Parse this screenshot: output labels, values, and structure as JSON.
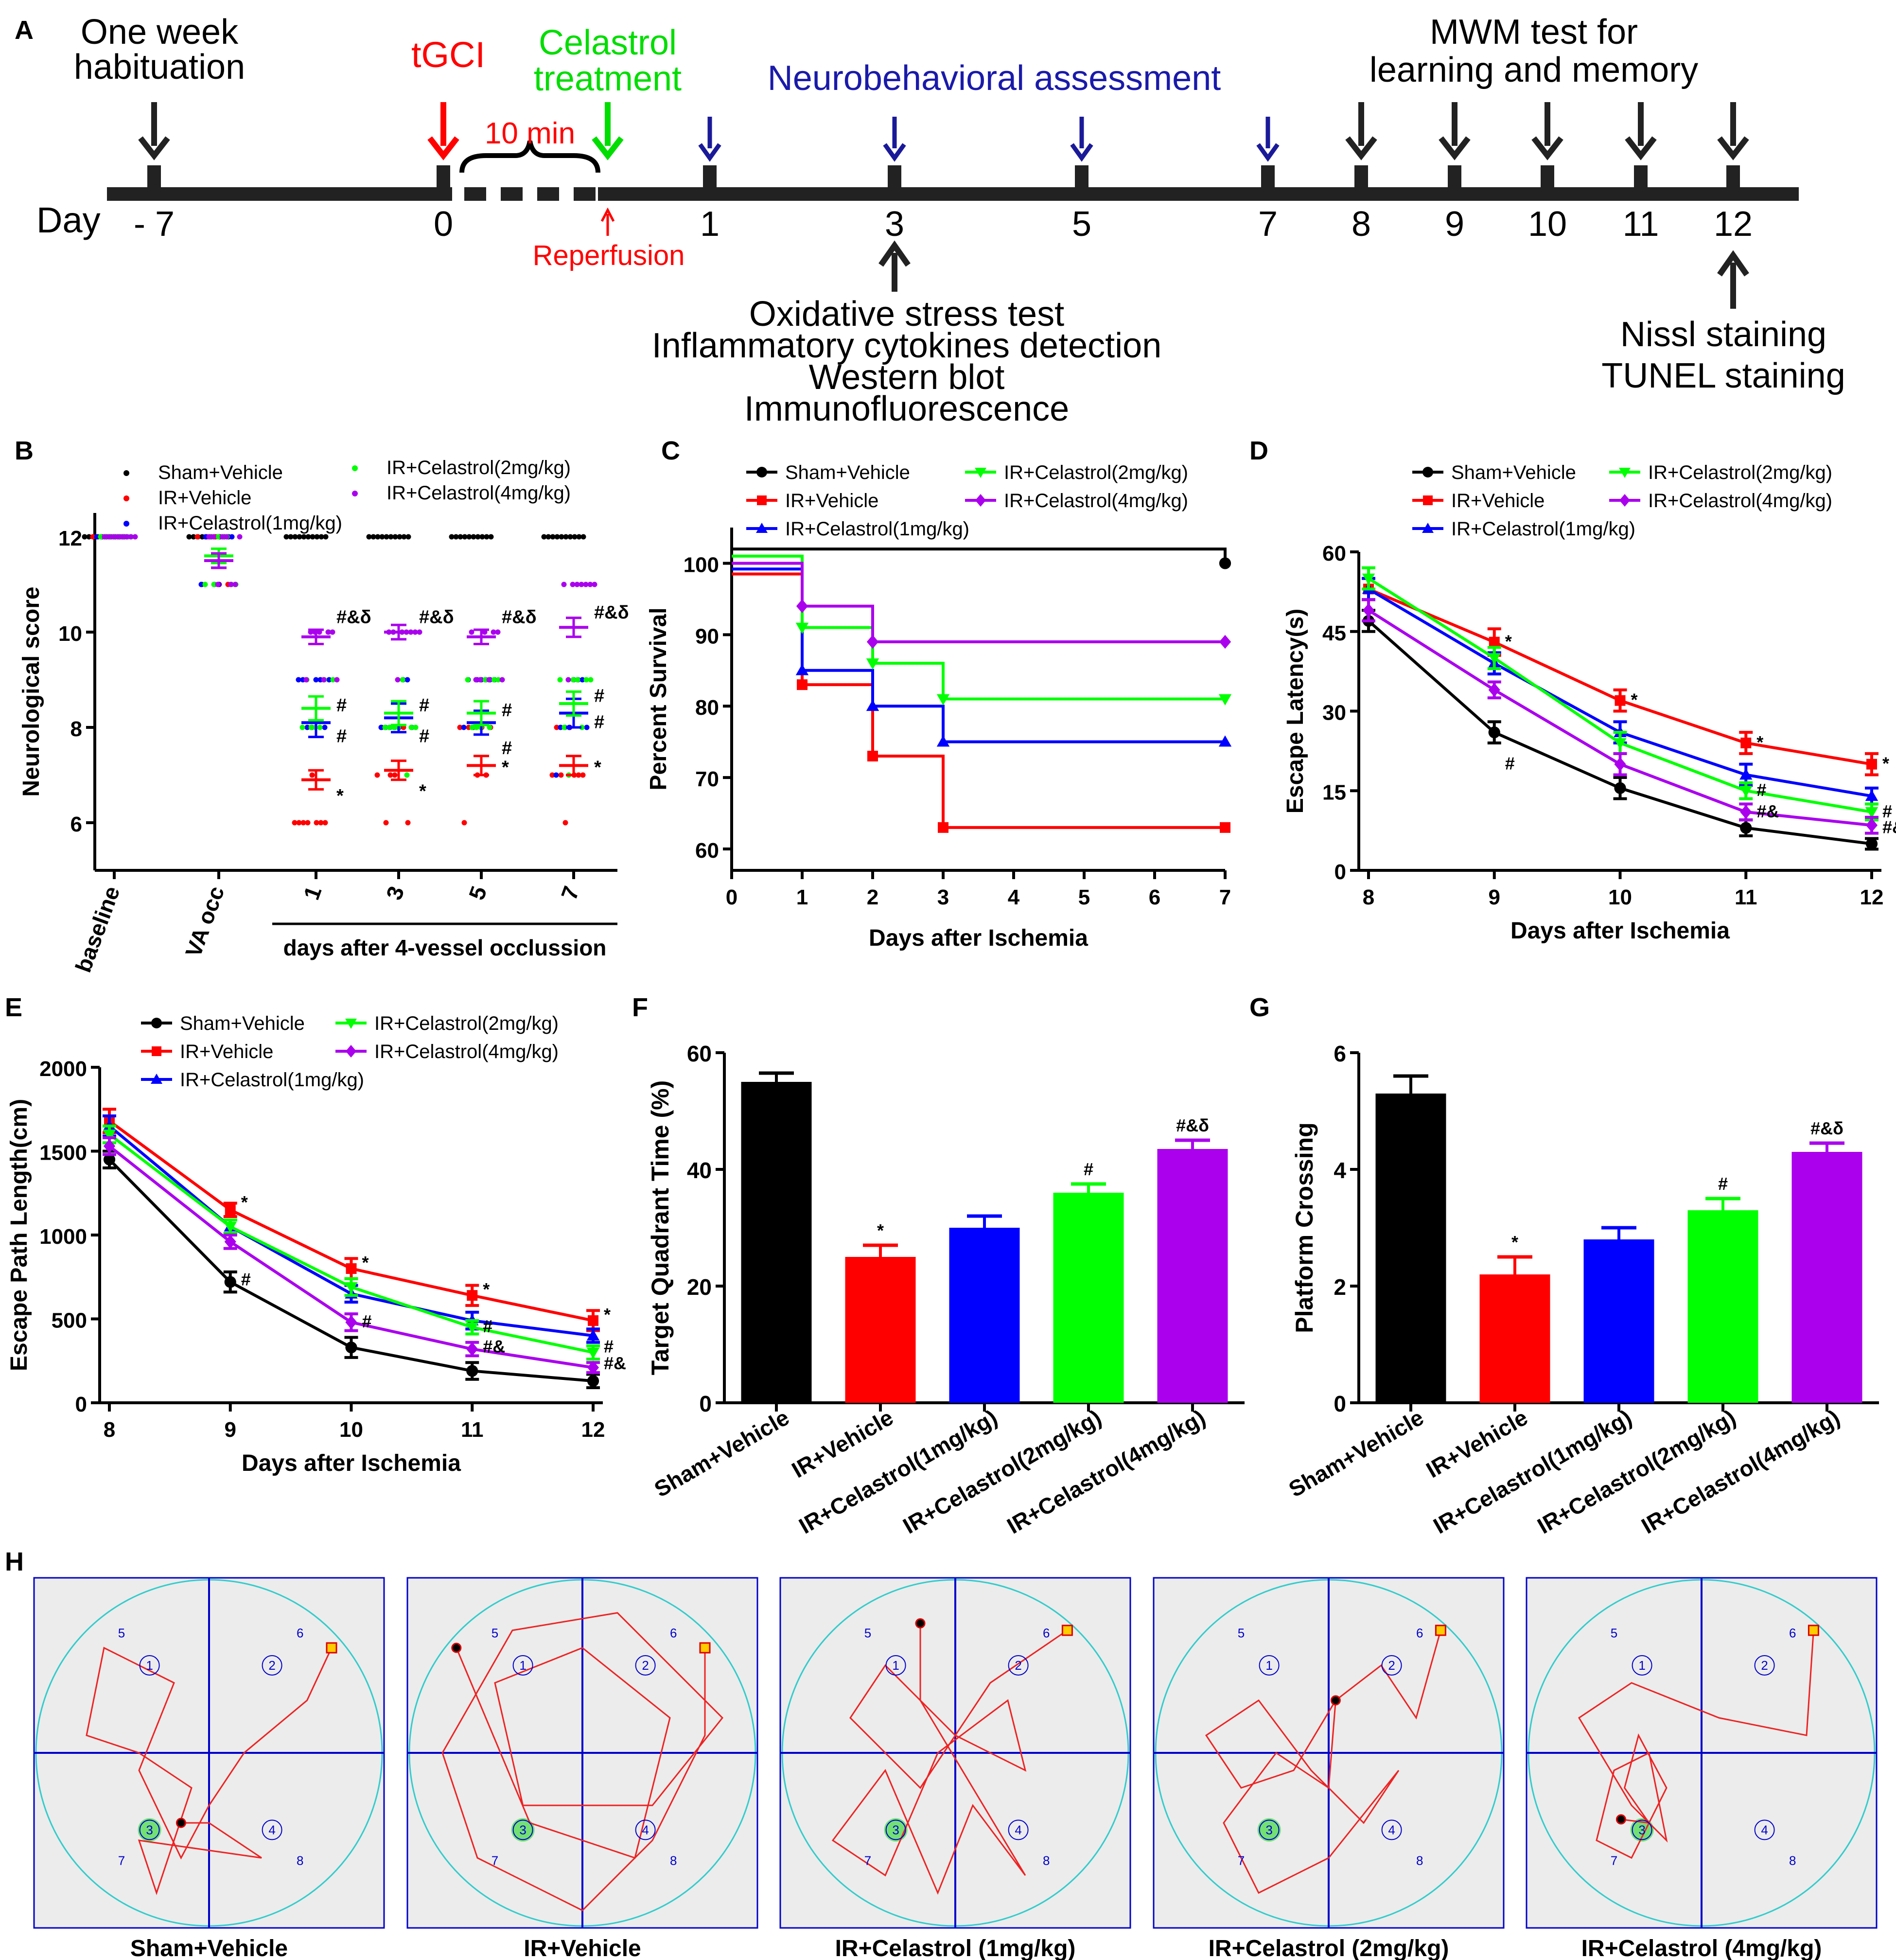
{
  "colors": {
    "sham": "#000000",
    "ir": "#ff0000",
    "c1": "#0000ff",
    "c2": "#00ff00",
    "c4": "#aa00ee",
    "blueArrow": "#1a1a99",
    "pathRed": "#ee2222",
    "poolCyan": "#33cccc",
    "quadBlue": "#0000cc",
    "areaGrey": "#ececec",
    "platformGreen": "#55dd55"
  },
  "series_names": [
    "Sham+Vehicle",
    "IR+Vehicle",
    "IR+Celastrol(1mg/kg)",
    "IR+Celastrol(2mg/kg)",
    "IR+Celastrol(4mg/kg)"
  ],
  "panelA": {
    "letter": "A",
    "day_label": "Day",
    "events": [
      {
        "day": "- 7",
        "lines": [
          "One week",
          "habituation"
        ],
        "color": "sham"
      },
      {
        "day": "0",
        "lines": [
          "tGCI"
        ],
        "color": "ir"
      },
      {
        "day": "",
        "lines": [
          "Celastrol",
          "treatment"
        ],
        "color": "c2"
      },
      {
        "day": "1",
        "lines": [],
        "color": "blueArrow"
      },
      {
        "day": "3",
        "lines": [],
        "color": "blueArrow"
      },
      {
        "day": "5",
        "lines": [],
        "color": "blueArrow"
      },
      {
        "day": "7",
        "lines": [],
        "color": "blueArrow"
      },
      {
        "day": "8",
        "lines": [],
        "color": "sham"
      },
      {
        "day": "9",
        "lines": [],
        "color": "sham"
      },
      {
        "day": "10",
        "lines": [],
        "color": "sham"
      },
      {
        "day": "11",
        "lines": [],
        "color": "sham"
      },
      {
        "day": "12",
        "lines": [],
        "color": "sham"
      }
    ],
    "ten_min": "10 min",
    "reperfusion": "Reperfusion",
    "neuro": "Neurobehavioral assessment",
    "mwm": [
      "MWM test for",
      "learning and memory"
    ],
    "day3_tests": [
      "Oxidative stress test",
      "Inflammatory cytokines detection",
      "Western blot",
      "Immunofluorescence"
    ],
    "day12_tests": [
      "Nissl staining",
      "TUNEL staining"
    ]
  },
  "chart_data": [
    {
      "panel": "B",
      "type": "scatter",
      "title": "",
      "ylabel": "Neurological score",
      "xlabel": "days after 4-vessel occlussion",
      "categories": [
        "baseline",
        "VA occ",
        "1",
        "3",
        "5",
        "7"
      ],
      "ylim": [
        5,
        12.5
      ],
      "yticks": [
        6,
        8,
        10,
        12
      ],
      "means": {
        "Sham+Vehicle": [
          12,
          12,
          12,
          12,
          12,
          12
        ],
        "IR+Vehicle": [
          12,
          11.5,
          6.9,
          7.1,
          7.2,
          7.2
        ],
        "IR+Celastrol(1mg/kg)": [
          12,
          11.5,
          8.1,
          8.2,
          8.1,
          8.3
        ],
        "IR+Celastrol(2mg/kg)": [
          12,
          11.6,
          8.4,
          8.3,
          8.3,
          8.5
        ],
        "IR+Celastrol(4mg/kg)": [
          12,
          11.5,
          9.9,
          10,
          9.9,
          10.1
        ]
      },
      "sem": {
        "Sham+Vehicle": [
          0,
          0,
          0,
          0,
          0,
          0
        ],
        "IR+Vehicle": [
          0,
          0.15,
          0.2,
          0.2,
          0.2,
          0.2
        ],
        "IR+Celastrol(1mg/kg)": [
          0,
          0.15,
          0.3,
          0.3,
          0.25,
          0.3
        ],
        "IR+Celastrol(2mg/kg)": [
          0,
          0.15,
          0.25,
          0.25,
          0.25,
          0.25
        ],
        "IR+Celastrol(4mg/kg)": [
          0,
          0.15,
          0.15,
          0.15,
          0.15,
          0.2
        ]
      },
      "annotations": [
        {
          "cat": "1",
          "y": 10.35,
          "text": "#&δ"
        },
        {
          "cat": "1",
          "y": 8.5,
          "text": "#"
        },
        {
          "cat": "1",
          "y": 7.85,
          "text": "#"
        },
        {
          "cat": "1",
          "y": 6.6,
          "text": "*"
        },
        {
          "cat": "3",
          "y": 10.35,
          "text": "#&δ"
        },
        {
          "cat": "3",
          "y": 8.5,
          "text": "#"
        },
        {
          "cat": "3",
          "y": 7.85,
          "text": "#"
        },
        {
          "cat": "3",
          "y": 6.7,
          "text": "*"
        },
        {
          "cat": "5",
          "y": 10.35,
          "text": "#&δ"
        },
        {
          "cat": "5",
          "y": 8.4,
          "text": "#"
        },
        {
          "cat": "5",
          "y": 7.6,
          "text": "#"
        },
        {
          "cat": "5",
          "y": 7.2,
          "text": "*"
        },
        {
          "cat": "7",
          "y": 10.45,
          "text": "#&δ"
        },
        {
          "cat": "7",
          "y": 8.7,
          "text": "#"
        },
        {
          "cat": "7",
          "y": 8.15,
          "text": "#"
        },
        {
          "cat": "7",
          "y": 7.2,
          "text": "*"
        }
      ]
    },
    {
      "panel": "C",
      "type": "line",
      "title": "",
      "xlabel": "Days after Ischemia",
      "ylabel": "Percent Survival",
      "xlim": [
        0,
        7
      ],
      "ylim": [
        57,
        105
      ],
      "xticks": [
        0,
        1,
        2,
        3,
        4,
        5,
        6,
        7
      ],
      "yticks": [
        60,
        70,
        80,
        90,
        100
      ],
      "series": [
        {
          "name": "Sham+Vehicle",
          "steps": [
            [
              0,
              100
            ],
            [
              7,
              100
            ]
          ]
        },
        {
          "name": "IR+Vehicle",
          "steps": [
            [
              0,
              100
            ],
            [
              1,
              83
            ],
            [
              2,
              73
            ],
            [
              3,
              63
            ],
            [
              7,
              63
            ]
          ]
        },
        {
          "name": "IR+Celastrol(1mg/kg)",
          "steps": [
            [
              0,
              100
            ],
            [
              1,
              85
            ],
            [
              2,
              80
            ],
            [
              3,
              75
            ],
            [
              7,
              75
            ]
          ]
        },
        {
          "name": "IR+Celastrol(2mg/kg)",
          "steps": [
            [
              0,
              100
            ],
            [
              1,
              91
            ],
            [
              2,
              86
            ],
            [
              3,
              81
            ],
            [
              7,
              81
            ]
          ]
        },
        {
          "name": "IR+Celastrol(4mg/kg)",
          "steps": [
            [
              0,
              100
            ],
            [
              1,
              94
            ],
            [
              2,
              89
            ],
            [
              7,
              89
            ]
          ]
        }
      ]
    },
    {
      "panel": "D",
      "type": "line",
      "title": "",
      "xlabel": "Days after Ischemia",
      "ylabel": "Escape Latency(s)",
      "x": [
        8,
        9,
        10,
        11,
        12
      ],
      "ylim": [
        0,
        60
      ],
      "yticks": [
        0,
        15,
        30,
        45,
        60
      ],
      "series": [
        {
          "name": "Sham+Vehicle",
          "values": [
            47,
            26,
            15.5,
            8,
            5
          ],
          "err": [
            2,
            2,
            2,
            1.5,
            1
          ]
        },
        {
          "name": "IR+Vehicle",
          "values": [
            53,
            43,
            32,
            24,
            20
          ],
          "err": [
            2,
            2.5,
            2,
            2,
            2
          ]
        },
        {
          "name": "IR+Celastrol(1mg/kg)",
          "values": [
            53,
            39,
            26,
            18,
            14
          ],
          "err": [
            2,
            2,
            2,
            2,
            1.5
          ]
        },
        {
          "name": "IR+Celastrol(2mg/kg)",
          "values": [
            55,
            40,
            24,
            15,
            11
          ],
          "err": [
            2,
            2,
            2,
            1.5,
            1.5
          ]
        },
        {
          "name": "IR+Celastrol(4mg/kg)",
          "values": [
            49,
            34,
            20,
            11,
            8.5
          ],
          "err": [
            2,
            1.5,
            2,
            1.5,
            1.5
          ]
        }
      ],
      "annotations": [
        {
          "x": 9,
          "y": 42,
          "text": "*"
        },
        {
          "x": 10,
          "y": 31,
          "text": "*"
        },
        {
          "x": 11,
          "y": 23,
          "text": "*"
        },
        {
          "x": 12,
          "y": 19,
          "text": "*"
        },
        {
          "x": 9,
          "y": 19,
          "text": "#"
        },
        {
          "x": 11,
          "y": 14,
          "text": "#"
        },
        {
          "x": 11,
          "y": 10,
          "text": "#&"
        },
        {
          "x": 12,
          "y": 10,
          "text": "#"
        },
        {
          "x": 12,
          "y": 7,
          "text": "#&"
        }
      ]
    },
    {
      "panel": "E",
      "type": "line",
      "title": "",
      "xlabel": "Days after Ischemia",
      "ylabel": "Escape Path Length(cm)",
      "x": [
        8,
        9,
        10,
        11,
        12
      ],
      "ylim": [
        0,
        2000
      ],
      "yticks": [
        0,
        500,
        1000,
        1500,
        2000
      ],
      "series": [
        {
          "name": "Sham+Vehicle",
          "values": [
            1450,
            720,
            330,
            190,
            130
          ],
          "err": [
            50,
            60,
            60,
            50,
            40
          ]
        },
        {
          "name": "IR+Vehicle",
          "values": [
            1680,
            1150,
            800,
            640,
            490
          ],
          "err": [
            70,
            40,
            60,
            60,
            60
          ]
        },
        {
          "name": "IR+Celastrol(1mg/kg)",
          "values": [
            1650,
            1050,
            650,
            490,
            400
          ],
          "err": [
            60,
            40,
            50,
            50,
            40
          ]
        },
        {
          "name": "IR+Celastrol(2mg/kg)",
          "values": [
            1600,
            1050,
            690,
            450,
            300
          ],
          "err": [
            50,
            40,
            50,
            40,
            40
          ]
        },
        {
          "name": "IR+Celastrol(4mg/kg)",
          "values": [
            1530,
            960,
            480,
            320,
            210
          ],
          "err": [
            50,
            40,
            50,
            40,
            30
          ]
        }
      ],
      "annotations": [
        {
          "x": 9,
          "y": 1160,
          "text": "*"
        },
        {
          "x": 10,
          "y": 800,
          "text": "*"
        },
        {
          "x": 11,
          "y": 640,
          "text": "*"
        },
        {
          "x": 12,
          "y": 490,
          "text": "*"
        },
        {
          "x": 9,
          "y": 700,
          "text": "#"
        },
        {
          "x": 10,
          "y": 450,
          "text": "#"
        },
        {
          "x": 11,
          "y": 420,
          "text": "#"
        },
        {
          "x": 11,
          "y": 300,
          "text": "#&"
        },
        {
          "x": 12,
          "y": 300,
          "text": "#"
        },
        {
          "x": 12,
          "y": 200,
          "text": "#&"
        }
      ]
    },
    {
      "panel": "F",
      "type": "bar",
      "title": "",
      "ylabel": "Target Quadrant Time (%)",
      "xlabel": "",
      "categories": [
        "Sham+Vehicle",
        "IR+Vehicle",
        "IR+Celastrol(1mg/kg)",
        "IR+Celastrol(2mg/kg)",
        "IR+Celastrol(4mg/kg)"
      ],
      "values": [
        55,
        25,
        30,
        36,
        43.5
      ],
      "err": [
        1.5,
        2,
        2,
        1.5,
        1.5
      ],
      "labels": [
        "",
        "*",
        "",
        "#",
        "#&δ"
      ],
      "ylim": [
        0,
        60
      ],
      "yticks": [
        0,
        20,
        40,
        60
      ]
    },
    {
      "panel": "G",
      "type": "bar",
      "title": "",
      "ylabel": "Platform Crossing",
      "xlabel": "",
      "categories": [
        "Sham+Vehicle",
        "IR+Vehicle",
        "IR+Celastrol(1mg/kg)",
        "IR+Celastrol(2mg/kg)",
        "IR+Celastrol(4mg/kg)"
      ],
      "values": [
        5.3,
        2.2,
        2.8,
        3.3,
        4.3
      ],
      "err": [
        0.3,
        0.3,
        0.2,
        0.2,
        0.15
      ],
      "labels": [
        "",
        "*",
        "",
        "#",
        "#&δ"
      ],
      "ylim": [
        0,
        6
      ],
      "yticks": [
        0,
        2,
        4,
        6
      ]
    }
  ],
  "panelH": {
    "letter": "H",
    "quadrant_numbers": [
      "1",
      "2",
      "3",
      "4"
    ],
    "zone_numbers": [
      "5",
      "6",
      "7",
      "8"
    ],
    "titles": [
      "Sham+Vehicle",
      "IR+Vehicle",
      "IR+Celastrol (1mg/kg)",
      "IR+Celastrol (2mg/kg)",
      "IR+Celastrol (4mg/kg)"
    ]
  }
}
